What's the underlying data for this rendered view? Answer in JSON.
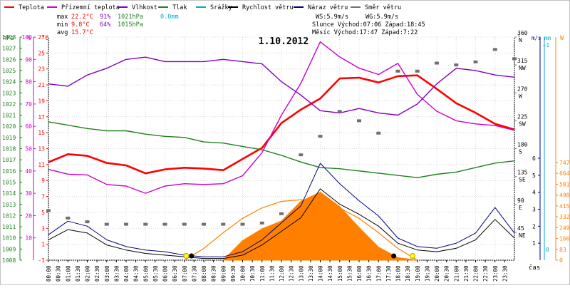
{
  "chart_data": {
    "type": "line",
    "title": "1.10.2012",
    "xlabel": "čas",
    "legend": [
      {
        "label": "Teplota",
        "color": "#ff0000"
      },
      {
        "label": "Přízemní teplota",
        "color": "#cc00cc"
      },
      {
        "label": "Vlhkost",
        "color": "#8000c0"
      },
      {
        "label": "Tlak",
        "color": "#208020"
      },
      {
        "label": "Srážky",
        "color": "#00aacc"
      },
      {
        "label": "Rychlost větru",
        "color": "#000000"
      },
      {
        "label": "Náraz větru",
        "color": "#000080"
      },
      {
        "label": "Směr větru",
        "color": "#707070"
      }
    ],
    "stats": {
      "max": {
        "label": "max",
        "temp": "22.2°C",
        "humidity": "91%",
        "pressure": "1021hPa",
        "rain": "0.0mm"
      },
      "min": {
        "label": "min",
        "temp": "9.8°C",
        "humidity": "64%",
        "pressure": "1015hPa"
      },
      "avg": {
        "label": "avg",
        "temp": "15.7°C"
      },
      "ws": "WS:5.9m/s",
      "wg": "WG:5.9m/s",
      "sun": "Slunce Východ:07:06  Západ:18:45",
      "moon": "Měsíc  Východ:17:47  Západ:7:22"
    },
    "axes": {
      "hpa": {
        "unit": "hPa",
        "ticks": [
          1008,
          1009,
          1010,
          1011,
          1012,
          1013,
          1014,
          1015,
          1016,
          1017,
          1018,
          1019,
          1020,
          1021,
          1022,
          1023,
          1024,
          1025,
          1026,
          1027,
          1028
        ],
        "color": "#208020"
      },
      "pct": {
        "unit": "%",
        "ticks": [
          0,
          5,
          10,
          15,
          20,
          25,
          30,
          35,
          40,
          45,
          50,
          55,
          60,
          65,
          70,
          75,
          80,
          85,
          90,
          95,
          100
        ],
        "color": "#cc00cc"
      },
      "temp": {
        "unit": "°C",
        "ticks": [
          -1,
          1,
          3,
          5,
          7,
          9,
          11,
          13,
          15,
          17,
          19,
          21,
          23,
          25,
          27
        ],
        "color": "#ff0000"
      },
      "dir": {
        "unit": "°",
        "ticks": [
          {
            "v": 45,
            "d": "NE"
          },
          {
            "v": 90,
            "d": "E"
          },
          {
            "v": 135,
            "d": "SE"
          },
          {
            "v": 180,
            "d": "S"
          },
          {
            "v": 225,
            "d": "SW"
          },
          {
            "v": 270,
            "d": "W"
          },
          {
            "v": 315,
            "d": "NW"
          },
          {
            "v": 360,
            "d": "N"
          }
        ],
        "color": "#707070"
      },
      "ms": {
        "unit": "m/s",
        "ticks": [
          1,
          2,
          3,
          4,
          5,
          6
        ],
        "color": "#000080"
      },
      "mm": {
        "unit": "mm",
        "ticks": [
          "0",
          "~1"
        ],
        "color": "#00aacc"
      },
      "w": {
        "unit": "W",
        "ticks": [
          0,
          83,
          166,
          249,
          332,
          415,
          498,
          581,
          664,
          747
        ],
        "color": "#ff8000"
      }
    },
    "x_ticks": [
      "00:00",
      "00:30",
      "01:00",
      "01:30",
      "02:00",
      "02:30",
      "03:00",
      "03:30",
      "04:00",
      "04:30",
      "05:00",
      "05:30",
      "06:00",
      "06:30",
      "07:00",
      "07:30",
      "08:00",
      "08:30",
      "09:00",
      "09:30",
      "10:00",
      "10:30",
      "11:00",
      "11:30",
      "12:00",
      "12:30",
      "13:00",
      "13:30",
      "14:00",
      "14:30",
      "15:00",
      "15:30",
      "16:00",
      "16:30",
      "17:00",
      "17:30",
      "18:00",
      "18:30",
      "19:00",
      "19:30",
      "20:00",
      "20:30",
      "21:00",
      "21:30",
      "22:00",
      "22:30",
      "23:00",
      "23:30"
    ],
    "series": [
      {
        "name": "Teplota",
        "unit": "°C",
        "color": "#ff0000",
        "hours": [
          0,
          1,
          2,
          3,
          4,
          5,
          6,
          7,
          8,
          9,
          10,
          11,
          12,
          13,
          14,
          15,
          16,
          17,
          18,
          19,
          20,
          21,
          22,
          23,
          24
        ],
        "values": [
          11.3,
          12.3,
          12.1,
          11.2,
          10.9,
          9.9,
          10.4,
          10.6,
          10.5,
          10.3,
          11.7,
          13.1,
          16.2,
          17.9,
          19.3,
          21.8,
          21.9,
          21.3,
          22.1,
          22.2,
          20.5,
          18.7,
          17.5,
          16.1,
          15.4
        ]
      },
      {
        "name": "Přízemní teplota",
        "unit": "°C",
        "color": "#cc00cc",
        "hours": [
          0,
          1,
          2,
          3,
          4,
          5,
          6,
          7,
          8,
          9,
          10,
          11,
          12,
          13,
          14,
          15,
          16,
          17,
          18,
          19,
          20,
          21,
          22,
          23,
          24
        ],
        "values": [
          10.4,
          9.8,
          9.7,
          8.5,
          8.3,
          7.4,
          8.3,
          8.6,
          8.5,
          8.6,
          9.6,
          12.5,
          17.2,
          21.2,
          26.4,
          24.5,
          23.1,
          22.3,
          23.7,
          19.8,
          17.7,
          16.5,
          16.1,
          15.9,
          15.3
        ]
      },
      {
        "name": "Vlhkost",
        "unit": "%",
        "color": "#8000c0",
        "hours": [
          0,
          1,
          2,
          3,
          4,
          5,
          6,
          7,
          8,
          9,
          10,
          11,
          12,
          13,
          14,
          15,
          16,
          17,
          18,
          19,
          20,
          21,
          22,
          23,
          24
        ],
        "values": [
          79,
          78,
          83,
          86,
          90,
          91,
          89,
          89,
          89,
          90,
          89,
          88,
          80,
          74,
          67,
          66,
          68,
          66,
          65,
          70,
          79,
          86,
          85,
          83,
          82
        ]
      },
      {
        "name": "Tlak",
        "unit": "hPa",
        "color": "#208020",
        "hours": [
          0,
          1,
          2,
          3,
          4,
          5,
          6,
          7,
          8,
          9,
          10,
          11,
          12,
          13,
          14,
          15,
          16,
          17,
          18,
          19,
          20,
          21,
          22,
          23,
          24
        ],
        "values": [
          1020.4,
          1020.1,
          1019.8,
          1019.6,
          1019.6,
          1019.3,
          1019.1,
          1019.0,
          1018.6,
          1018.5,
          1018.2,
          1017.9,
          1017.4,
          1016.8,
          1016.3,
          1016.2,
          1016.0,
          1015.8,
          1015.6,
          1015.4,
          1015.7,
          1015.9,
          1016.3,
          1016.7,
          1016.9
        ]
      },
      {
        "name": "Rychlost větru",
        "unit": "m/s",
        "color": "#000000",
        "hours": [
          0,
          1,
          2,
          3,
          4,
          5,
          6,
          7,
          8,
          9,
          10,
          11,
          12,
          13,
          14,
          15,
          16,
          17,
          18,
          19,
          20,
          21,
          22,
          23,
          24
        ],
        "values": [
          1.2,
          1.8,
          1.6,
          0.9,
          0.6,
          0.4,
          0.3,
          0.2,
          0.1,
          0.1,
          0.3,
          0.9,
          1.7,
          2.5,
          4.2,
          3.3,
          2.7,
          2.0,
          1.0,
          0.6,
          0.5,
          0.7,
          1.2,
          2.4,
          1.3
        ]
      },
      {
        "name": "Náraz větru",
        "unit": "m/s",
        "color": "#000080",
        "hours": [
          0,
          1,
          2,
          3,
          4,
          5,
          6,
          7,
          8,
          9,
          10,
          11,
          12,
          13,
          14,
          15,
          16,
          17,
          18,
          19,
          20,
          21,
          22,
          23,
          24
        ],
        "values": [
          1.5,
          2.3,
          2.0,
          1.2,
          0.8,
          0.6,
          0.5,
          0.3,
          0.2,
          0.2,
          0.5,
          1.2,
          2.2,
          3.2,
          5.7,
          4.5,
          3.5,
          2.6,
          1.3,
          0.8,
          0.7,
          1.0,
          1.6,
          3.1,
          1.6
        ]
      },
      {
        "name": "Směr větru",
        "unit": "°",
        "color": "#707070",
        "hours": [
          0,
          1,
          2,
          3,
          4,
          5,
          6,
          7,
          8,
          9,
          10,
          11,
          12,
          13,
          14,
          15,
          16,
          17,
          18,
          19,
          20,
          21,
          22,
          23,
          24
        ],
        "values": [
          80,
          68,
          62,
          58,
          58,
          58,
          58,
          58,
          58,
          58,
          58,
          60,
          75,
          170,
          200,
          240,
          225,
          205,
          305,
          305,
          318,
          315,
          320,
          340,
          325
        ]
      }
    ],
    "solar_radiation": {
      "unit": "W",
      "color": "#ff8000",
      "hours": [
        9,
        10,
        11,
        12,
        13,
        14,
        15,
        16,
        17,
        18,
        19
      ],
      "values": [
        0,
        150,
        240,
        300,
        450,
        520,
        410,
        250,
        100,
        20,
        0
      ]
    },
    "solar_theoretical_max": {
      "unit": "W",
      "color": "#ff8000",
      "hours": [
        7,
        8,
        9,
        10,
        11,
        12,
        13,
        14,
        15,
        16,
        17,
        18,
        19
      ],
      "values": [
        0,
        90,
        210,
        320,
        400,
        450,
        462,
        450,
        400,
        320,
        210,
        90,
        0
      ]
    },
    "markers": {
      "sunrise": "07:06",
      "sunset": "18:45",
      "moonrise": "17:47",
      "moonset": "7:22"
    }
  }
}
